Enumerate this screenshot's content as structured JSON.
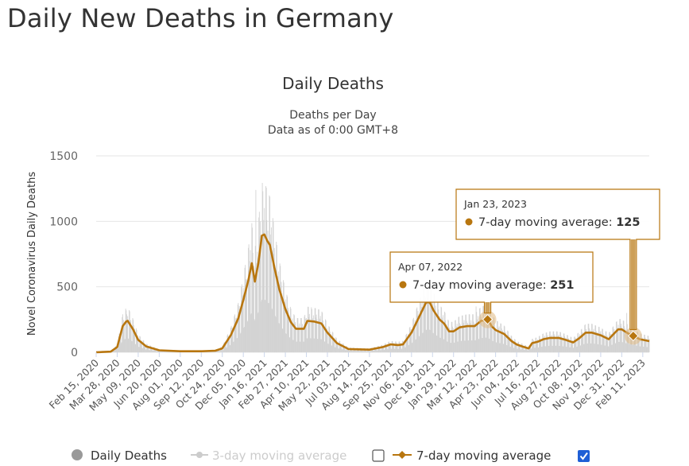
{
  "page": {
    "title": "Daily New Deaths in Germany"
  },
  "chart_data": {
    "type": "area",
    "title": "Daily Deaths",
    "subtitle_lines": [
      "Deaths per Day",
      "Data as of 0:00 GMT+8"
    ],
    "xlabel": "",
    "ylabel": "Novel Coronavirus Daily Deaths",
    "ylim": [
      0,
      1500
    ],
    "y_ticks": [
      0,
      500,
      1000,
      1500
    ],
    "x_ticks": [
      "Feb 15, 2020",
      "Mar 28, 2020",
      "May 09, 2020",
      "Jun 20, 2020",
      "Aug 01, 2020",
      "Sep 12, 2020",
      "Oct 24, 2020",
      "Dec 05, 2020",
      "Jan 16, 2021",
      "Feb 27, 2021",
      "Apr 10, 2021",
      "May 22, 2021",
      "Jul 03, 2021",
      "Aug 14, 2021",
      "Sep 25, 2021",
      "Nov 06, 2021",
      "Dec 18, 2021",
      "Jan 29, 2022",
      "Mar 12, 2022",
      "Apr 23, 2022",
      "Jun 04, 2022",
      "Jul 16, 2022",
      "Aug 27, 2022",
      "Oct 08, 2022",
      "Nov 19, 2022",
      "Dec 31, 2022",
      "Feb 11, 2023"
    ],
    "x_range": [
      "2020-02-15",
      "2023-02-24"
    ],
    "grid": "horizontal",
    "legend_position": "bottom",
    "series": [
      {
        "name": "Daily Deaths",
        "kind": "bars",
        "color": "#d3d3d3",
        "visible": true,
        "peaks": [
          {
            "x": "2020-04-15",
            "y": 320
          },
          {
            "x": "2020-12-30",
            "y": 1240
          },
          {
            "x": "2021-01-13",
            "y": 1230
          },
          {
            "x": "2021-04-21",
            "y": 330
          },
          {
            "x": "2021-12-10",
            "y": 510
          },
          {
            "x": "2022-03-15",
            "y": 350
          },
          {
            "x": "2023-01-10",
            "y": 300
          }
        ]
      },
      {
        "name": "3-day moving average",
        "kind": "line",
        "color": "#cccccc",
        "visible": false
      },
      {
        "name": "7-day moving average",
        "kind": "line",
        "color": "#b8760f",
        "visible": true,
        "points": [
          {
            "x": "2020-02-15",
            "y": 0
          },
          {
            "x": "2020-03-15",
            "y": 5
          },
          {
            "x": "2020-03-28",
            "y": 40
          },
          {
            "x": "2020-04-08",
            "y": 200
          },
          {
            "x": "2020-04-15",
            "y": 235
          },
          {
            "x": "2020-04-18",
            "y": 240
          },
          {
            "x": "2020-04-28",
            "y": 180
          },
          {
            "x": "2020-05-09",
            "y": 95
          },
          {
            "x": "2020-05-25",
            "y": 45
          },
          {
            "x": "2020-06-20",
            "y": 15
          },
          {
            "x": "2020-08-01",
            "y": 8
          },
          {
            "x": "2020-09-12",
            "y": 8
          },
          {
            "x": "2020-10-10",
            "y": 12
          },
          {
            "x": "2020-10-24",
            "y": 30
          },
          {
            "x": "2020-11-10",
            "y": 130
          },
          {
            "x": "2020-11-25",
            "y": 260
          },
          {
            "x": "2020-12-05",
            "y": 400
          },
          {
            "x": "2020-12-15",
            "y": 550
          },
          {
            "x": "2020-12-22",
            "y": 680
          },
          {
            "x": "2020-12-28",
            "y": 540
          },
          {
            "x": "2021-01-04",
            "y": 680
          },
          {
            "x": "2021-01-11",
            "y": 890
          },
          {
            "x": "2021-01-16",
            "y": 900
          },
          {
            "x": "2021-01-22",
            "y": 850
          },
          {
            "x": "2021-01-27",
            "y": 820
          },
          {
            "x": "2021-02-05",
            "y": 650
          },
          {
            "x": "2021-02-15",
            "y": 480
          },
          {
            "x": "2021-02-27",
            "y": 330
          },
          {
            "x": "2021-03-10",
            "y": 230
          },
          {
            "x": "2021-03-20",
            "y": 180
          },
          {
            "x": "2021-04-05",
            "y": 180
          },
          {
            "x": "2021-04-12",
            "y": 240
          },
          {
            "x": "2021-04-25",
            "y": 235
          },
          {
            "x": "2021-05-10",
            "y": 220
          },
          {
            "x": "2021-05-22",
            "y": 150
          },
          {
            "x": "2021-06-10",
            "y": 70
          },
          {
            "x": "2021-07-03",
            "y": 25
          },
          {
            "x": "2021-08-14",
            "y": 20
          },
          {
            "x": "2021-09-10",
            "y": 40
          },
          {
            "x": "2021-09-25",
            "y": 60
          },
          {
            "x": "2021-10-10",
            "y": 55
          },
          {
            "x": "2021-10-20",
            "y": 60
          },
          {
            "x": "2021-11-06",
            "y": 150
          },
          {
            "x": "2021-11-20",
            "y": 260
          },
          {
            "x": "2021-12-05",
            "y": 380
          },
          {
            "x": "2021-12-12",
            "y": 385
          },
          {
            "x": "2021-12-20",
            "y": 320
          },
          {
            "x": "2022-01-01",
            "y": 250
          },
          {
            "x": "2022-01-10",
            "y": 220
          },
          {
            "x": "2022-01-20",
            "y": 160
          },
          {
            "x": "2022-01-29",
            "y": 160
          },
          {
            "x": "2022-02-10",
            "y": 190
          },
          {
            "x": "2022-02-25",
            "y": 200
          },
          {
            "x": "2022-03-12",
            "y": 200
          },
          {
            "x": "2022-03-25",
            "y": 240
          },
          {
            "x": "2022-04-07",
            "y": 251
          },
          {
            "x": "2022-04-15",
            "y": 200
          },
          {
            "x": "2022-04-23",
            "y": 170
          },
          {
            "x": "2022-05-10",
            "y": 140
          },
          {
            "x": "2022-05-25",
            "y": 85
          },
          {
            "x": "2022-06-04",
            "y": 60
          },
          {
            "x": "2022-06-15",
            "y": 45
          },
          {
            "x": "2022-06-28",
            "y": 30
          },
          {
            "x": "2022-07-05",
            "y": 70
          },
          {
            "x": "2022-07-16",
            "y": 80
          },
          {
            "x": "2022-07-28",
            "y": 100
          },
          {
            "x": "2022-08-10",
            "y": 110
          },
          {
            "x": "2022-08-27",
            "y": 110
          },
          {
            "x": "2022-09-10",
            "y": 95
          },
          {
            "x": "2022-09-25",
            "y": 75
          },
          {
            "x": "2022-10-08",
            "y": 110
          },
          {
            "x": "2022-10-20",
            "y": 150
          },
          {
            "x": "2022-11-01",
            "y": 150
          },
          {
            "x": "2022-11-19",
            "y": 130
          },
          {
            "x": "2022-12-05",
            "y": 100
          },
          {
            "x": "2022-12-15",
            "y": 140
          },
          {
            "x": "2022-12-24",
            "y": 175
          },
          {
            "x": "2022-12-31",
            "y": 175
          },
          {
            "x": "2023-01-10",
            "y": 150
          },
          {
            "x": "2023-01-23",
            "y": 125
          },
          {
            "x": "2023-02-05",
            "y": 100
          },
          {
            "x": "2023-02-24",
            "y": 85
          }
        ]
      }
    ],
    "tooltips": [
      {
        "date": "Apr 07, 2022",
        "x": "2022-04-07",
        "y": 251,
        "series_label": "7-day moving average",
        "value": "251"
      },
      {
        "date": "Jan 23, 2023",
        "x": "2023-01-23",
        "y": 125,
        "series_label": "7-day moving average",
        "value": "125"
      }
    ]
  },
  "legend": {
    "daily_deaths": "Daily Deaths",
    "three_day": "3-day moving average",
    "seven_day": "7-day moving average",
    "three_day_checked": false,
    "seven_day_checked": true
  },
  "colors": {
    "accent": "#b8760f",
    "bars": "#d3d3d3",
    "disabled": "#cccccc",
    "checkbox": "#1f5fd6"
  }
}
